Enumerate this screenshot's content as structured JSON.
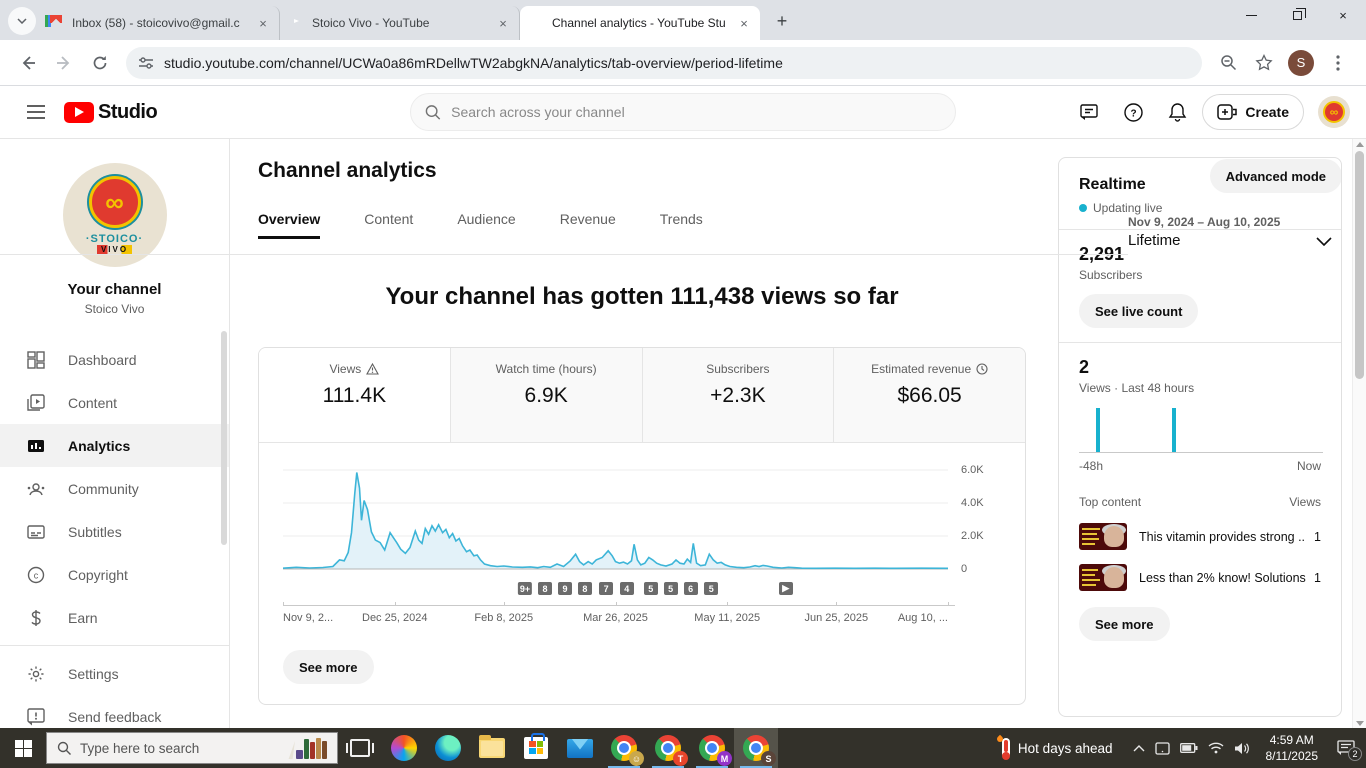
{
  "browser": {
    "tabs": [
      {
        "title": "Inbox (58) - stoicovivo@gmail.c",
        "icon": "gmail"
      },
      {
        "title": "Stoico Vivo - YouTube",
        "icon": "youtube"
      },
      {
        "title": "Channel analytics - YouTube Stu",
        "icon": "youtube",
        "active": true
      }
    ],
    "new_tab_glyph": "+",
    "close_glyph": "×",
    "url": "studio.youtube.com/channel/UCWa0a86mRDellwTW2abgkNA/analytics/tab-overview/period-lifetime",
    "profile_initial": "S"
  },
  "studio_header": {
    "logo_text": "Studio",
    "search_placeholder": "Search across your channel",
    "create_label": "Create"
  },
  "sidebar": {
    "avatar": {
      "glyph": "∞",
      "word1": "·STOICO·",
      "word2": "VIVO"
    },
    "your_channel": "Your channel",
    "channel_name": "Stoico Vivo",
    "items": [
      {
        "label": "Dashboard"
      },
      {
        "label": "Content"
      },
      {
        "label": "Analytics",
        "active": true
      },
      {
        "label": "Community"
      },
      {
        "label": "Subtitles"
      },
      {
        "label": "Copyright"
      },
      {
        "label": "Earn"
      },
      {
        "label": "Settings"
      },
      {
        "label": "Send feedback"
      }
    ]
  },
  "main": {
    "page_title": "Channel analytics",
    "tabs": [
      {
        "label": "Overview",
        "active": true
      },
      {
        "label": "Content"
      },
      {
        "label": "Audience"
      },
      {
        "label": "Revenue"
      },
      {
        "label": "Trends"
      }
    ],
    "advanced_mode_label": "Advanced mode",
    "date_range": "Nov 9, 2024 – Aug 10, 2025",
    "period": "Lifetime",
    "headline": "Your channel has gotten 111,438 views so far",
    "metrics": [
      {
        "label": "Views",
        "value": "111.4K",
        "icon": "warning",
        "active": true
      },
      {
        "label": "Watch time (hours)",
        "value": "6.9K"
      },
      {
        "label": "Subscribers",
        "value": "+2.3K"
      },
      {
        "label": "Estimated revenue",
        "value": "$66.05",
        "icon": "clock"
      }
    ],
    "see_more_label": "See more"
  },
  "chart_data": {
    "views_over_time": {
      "type": "line",
      "ylabel_ticks": [
        "6.0K",
        "4.0K",
        "2.0K",
        "0"
      ],
      "ymax_k": 6.0,
      "line_color": "#3db5d8",
      "fill_color": "#e3f2f9",
      "x_ticks": [
        {
          "label": "Nov 9, 2...",
          "pos": 0.0,
          "align": "left"
        },
        {
          "label": "Dec 25, 2024",
          "pos": 0.168,
          "align": "center"
        },
        {
          "label": "Feb 8, 2025",
          "pos": 0.332,
          "align": "center"
        },
        {
          "label": "Mar 26, 2025",
          "pos": 0.5,
          "align": "center"
        },
        {
          "label": "May 11, 2025",
          "pos": 0.668,
          "align": "center"
        },
        {
          "label": "Jun 25, 2025",
          "pos": 0.832,
          "align": "center"
        },
        {
          "label": "Aug 10, ...",
          "pos": 1.0,
          "align": "right"
        }
      ],
      "video_markers": [
        {
          "label": "9+",
          "pos": 0.364
        },
        {
          "label": "8",
          "pos": 0.394
        },
        {
          "label": "9",
          "pos": 0.424
        },
        {
          "label": "8",
          "pos": 0.454
        },
        {
          "label": "7",
          "pos": 0.486
        },
        {
          "label": "4",
          "pos": 0.517
        },
        {
          "label": "5",
          "pos": 0.553
        },
        {
          "label": "5",
          "pos": 0.583
        },
        {
          "label": "6",
          "pos": 0.613
        },
        {
          "label": "5",
          "pos": 0.644
        },
        {
          "label": "▶",
          "pos": 0.756
        }
      ],
      "points_frac_valueK": [
        [
          0,
          0.05
        ],
        [
          0.02,
          0.1
        ],
        [
          0.04,
          0.06
        ],
        [
          0.06,
          0.09
        ],
        [
          0.075,
          0.15
        ],
        [
          0.085,
          0.55
        ],
        [
          0.092,
          0.5
        ],
        [
          0.098,
          1.0
        ],
        [
          0.103,
          2.2
        ],
        [
          0.108,
          4.6
        ],
        [
          0.111,
          5.85
        ],
        [
          0.115,
          4.9
        ],
        [
          0.118,
          2.95
        ],
        [
          0.122,
          4.15
        ],
        [
          0.127,
          3.6
        ],
        [
          0.133,
          2.25
        ],
        [
          0.139,
          1.75
        ],
        [
          0.146,
          1.6
        ],
        [
          0.153,
          1.15
        ],
        [
          0.161,
          2.2
        ],
        [
          0.166,
          1.9
        ],
        [
          0.171,
          1.6
        ],
        [
          0.177,
          1.2
        ],
        [
          0.184,
          0.95
        ],
        [
          0.191,
          1.3
        ],
        [
          0.199,
          2.3
        ],
        [
          0.204,
          1.75
        ],
        [
          0.209,
          1.55
        ],
        [
          0.214,
          2.45
        ],
        [
          0.219,
          2.1
        ],
        [
          0.224,
          2.62
        ],
        [
          0.229,
          2.3
        ],
        [
          0.234,
          2.68
        ],
        [
          0.24,
          2.2
        ],
        [
          0.245,
          2.4
        ],
        [
          0.25,
          1.9
        ],
        [
          0.255,
          2.15
        ],
        [
          0.26,
          1.7
        ],
        [
          0.265,
          1.85
        ],
        [
          0.27,
          1.4
        ],
        [
          0.276,
          1.05
        ],
        [
          0.281,
          1.15
        ],
        [
          0.287,
          0.8
        ],
        [
          0.292,
          0.85
        ],
        [
          0.297,
          0.55
        ],
        [
          0.303,
          0.3
        ],
        [
          0.312,
          0.2
        ],
        [
          0.322,
          0.15
        ],
        [
          0.332,
          0.18
        ],
        [
          0.345,
          0.12
        ],
        [
          0.36,
          0.1
        ],
        [
          0.372,
          0.13
        ],
        [
          0.383,
          0.08
        ],
        [
          0.392,
          0.15
        ],
        [
          0.402,
          0.1
        ],
        [
          0.412,
          0.3
        ],
        [
          0.422,
          0.15
        ],
        [
          0.432,
          0.5
        ],
        [
          0.44,
          0.9
        ],
        [
          0.446,
          0.45
        ],
        [
          0.452,
          0.25
        ],
        [
          0.459,
          0.45
        ],
        [
          0.465,
          0.3
        ],
        [
          0.471,
          0.55
        ],
        [
          0.48,
          0.7
        ],
        [
          0.489,
          1.1
        ],
        [
          0.495,
          0.8
        ],
        [
          0.5,
          0.45
        ],
        [
          0.506,
          0.35
        ],
        [
          0.512,
          0.42
        ],
        [
          0.518,
          0.3
        ],
        [
          0.524,
          0.5
        ],
        [
          0.528,
          1.5
        ],
        [
          0.533,
          0.55
        ],
        [
          0.538,
          0.25
        ],
        [
          0.544,
          0.35
        ],
        [
          0.55,
          0.7
        ],
        [
          0.556,
          0.55
        ],
        [
          0.562,
          0.35
        ],
        [
          0.568,
          0.25
        ],
        [
          0.576,
          0.18
        ],
        [
          0.585,
          0.3
        ],
        [
          0.591,
          0.55
        ],
        [
          0.597,
          0.35
        ],
        [
          0.603,
          0.3
        ],
        [
          0.608,
          0.6
        ],
        [
          0.613,
          0.4
        ],
        [
          0.617,
          1.55
        ],
        [
          0.622,
          0.35
        ],
        [
          0.628,
          0.2
        ],
        [
          0.635,
          0.25
        ],
        [
          0.641,
          0.9
        ],
        [
          0.647,
          0.55
        ],
        [
          0.653,
          0.35
        ],
        [
          0.659,
          0.4
        ],
        [
          0.665,
          0.25
        ],
        [
          0.672,
          0.15
        ],
        [
          0.682,
          0.1
        ],
        [
          0.693,
          0.08
        ],
        [
          0.702,
          0.12
        ],
        [
          0.71,
          0.2
        ],
        [
          0.716,
          0.15
        ],
        [
          0.722,
          0.22
        ],
        [
          0.728,
          0.18
        ],
        [
          0.737,
          0.1
        ],
        [
          0.75,
          0.06
        ],
        [
          0.76,
          0.1
        ],
        [
          0.77,
          0.08
        ],
        [
          0.78,
          0.05
        ],
        [
          0.8,
          0.04
        ],
        [
          0.83,
          0.05
        ],
        [
          0.86,
          0.04
        ],
        [
          0.89,
          0.05
        ],
        [
          0.92,
          0.04
        ],
        [
          0.96,
          0.05
        ],
        [
          1,
          0.04
        ]
      ]
    },
    "realtime_48h": {
      "type": "bar",
      "bar_color": "#18b1ce",
      "xlabels": [
        "-48h",
        "Now"
      ],
      "bars": [
        {
          "pos": 0.068,
          "views": 1
        },
        {
          "pos": 0.38,
          "views": 1
        }
      ]
    }
  },
  "realtime": {
    "title": "Realtime",
    "live_label": "Updating live",
    "subscribers_count": "2,291",
    "subscribers_label": "Subscribers",
    "live_count_btn": "See live count",
    "views_count": "2",
    "views_label": "Views · Last 48 hours",
    "axis_left": "-48h",
    "axis_right": "Now",
    "top_content_label": "Top content",
    "views_col_label": "Views",
    "see_more_label": "See more",
    "items": [
      {
        "title": "This vitamin provides strong ...",
        "views": "1"
      },
      {
        "title": "Less than 2% know! Solutions...",
        "views": "1"
      }
    ]
  },
  "taskbar": {
    "search_placeholder": "Type here to search",
    "weather_text": "Hot days ahead",
    "time": "4:59 AM",
    "date": "8/11/2025",
    "notification_count": "2",
    "chrome_profiles": [
      "gold",
      "T",
      "M",
      "S"
    ]
  }
}
